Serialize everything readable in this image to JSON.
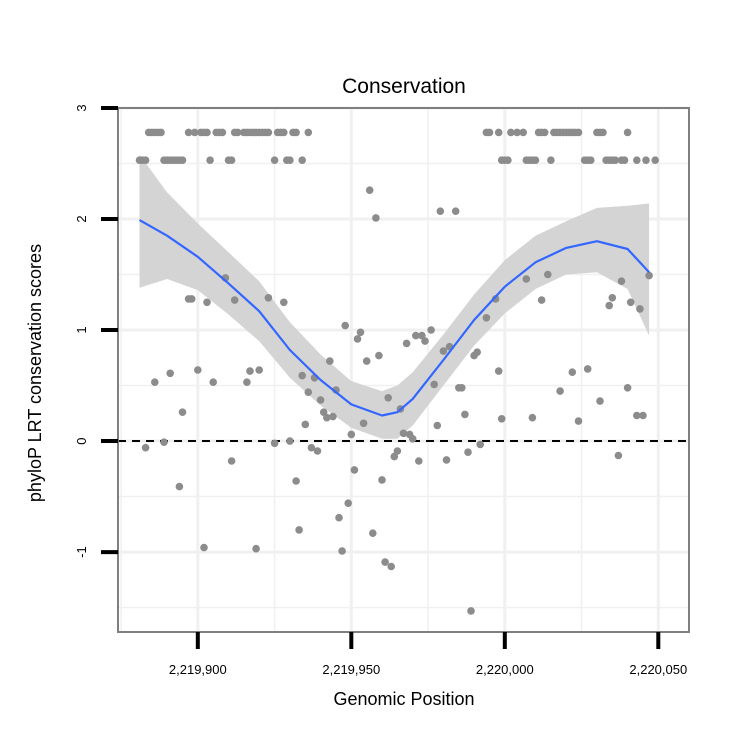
{
  "chart_data": {
    "type": "scatter",
    "title": "Conservation",
    "xlabel": "Genomic Position",
    "ylabel": "phyloP LRT conservation scores",
    "xlim": [
      2219874,
      2220060
    ],
    "ylim": [
      -1.72,
      3.0
    ],
    "x_ticks": [
      2219900,
      2219950,
      2220000,
      2220050
    ],
    "x_tick_labels": [
      "2,219,900",
      "2,219,950",
      "2,220,000",
      "2,220,050"
    ],
    "y_ticks": [
      -1,
      0,
      1,
      2,
      3
    ],
    "y_tick_labels": [
      "-1",
      "0",
      "1",
      "2",
      "3"
    ],
    "reference_line": {
      "y": 0,
      "style": "dashed"
    },
    "grid": true,
    "colors": {
      "points": "#8c8c8c",
      "smooth": "#3366ff",
      "ribbon": "#d4d4d4",
      "grid": "#f0f0f0",
      "panel_border": "#7f7f7f"
    },
    "points": [
      [
        2219881,
        2.53
      ],
      [
        2219882,
        2.53
      ],
      [
        2219883,
        2.53
      ],
      [
        2219884,
        2.78
      ],
      [
        2219885,
        2.78
      ],
      [
        2219886,
        2.78
      ],
      [
        2219887,
        2.78
      ],
      [
        2219888,
        2.78
      ],
      [
        2219889,
        2.53
      ],
      [
        2219890,
        2.53
      ],
      [
        2219891,
        2.53
      ],
      [
        2219892,
        2.53
      ],
      [
        2219893,
        2.53
      ],
      [
        2219894,
        2.53
      ],
      [
        2219895,
        2.53
      ],
      [
        2219897,
        2.78
      ],
      [
        2219899,
        2.78
      ],
      [
        2219901,
        2.78
      ],
      [
        2219902,
        2.78
      ],
      [
        2219903,
        2.78
      ],
      [
        2219904,
        2.53
      ],
      [
        2219906,
        2.78
      ],
      [
        2219907,
        2.78
      ],
      [
        2219908,
        2.78
      ],
      [
        2219910,
        2.53
      ],
      [
        2219911,
        2.53
      ],
      [
        2219912,
        2.78
      ],
      [
        2219913,
        2.78
      ],
      [
        2219915,
        2.78
      ],
      [
        2219916,
        2.78
      ],
      [
        2219917,
        2.78
      ],
      [
        2219918,
        2.78
      ],
      [
        2219919,
        2.78
      ],
      [
        2219920,
        2.78
      ],
      [
        2219921,
        2.78
      ],
      [
        2219922,
        2.78
      ],
      [
        2219923,
        2.78
      ],
      [
        2219925,
        2.53
      ],
      [
        2219926,
        2.78
      ],
      [
        2219927,
        2.78
      ],
      [
        2219928,
        2.78
      ],
      [
        2219929,
        2.53
      ],
      [
        2219930,
        2.53
      ],
      [
        2219931,
        2.78
      ],
      [
        2219932,
        2.78
      ],
      [
        2219934,
        2.53
      ],
      [
        2219936,
        2.78
      ],
      [
        2219994,
        2.78
      ],
      [
        2219995,
        2.78
      ],
      [
        2219998,
        2.78
      ],
      [
        2219999,
        2.53
      ],
      [
        2220000,
        2.53
      ],
      [
        2220001,
        2.53
      ],
      [
        2220002,
        2.78
      ],
      [
        2220004,
        2.78
      ],
      [
        2220006,
        2.78
      ],
      [
        2220007,
        2.53
      ],
      [
        2220008,
        2.53
      ],
      [
        2220009,
        2.53
      ],
      [
        2220010,
        2.53
      ],
      [
        2220011,
        2.78
      ],
      [
        2220012,
        2.78
      ],
      [
        2220013,
        2.78
      ],
      [
        2220015,
        2.53
      ],
      [
        2220016,
        2.78
      ],
      [
        2220017,
        2.78
      ],
      [
        2220018,
        2.78
      ],
      [
        2220019,
        2.78
      ],
      [
        2220020,
        2.78
      ],
      [
        2220021,
        2.78
      ],
      [
        2220022,
        2.78
      ],
      [
        2220023,
        2.78
      ],
      [
        2220024,
        2.78
      ],
      [
        2220026,
        2.53
      ],
      [
        2220027,
        2.53
      ],
      [
        2220028,
        2.53
      ],
      [
        2220030,
        2.78
      ],
      [
        2220031,
        2.78
      ],
      [
        2220032,
        2.78
      ],
      [
        2220033,
        2.53
      ],
      [
        2220034,
        2.53
      ],
      [
        2220035,
        2.53
      ],
      [
        2220036,
        2.53
      ],
      [
        2220038,
        2.53
      ],
      [
        2220039,
        2.53
      ],
      [
        2220040,
        2.78
      ],
      [
        2220043,
        2.53
      ],
      [
        2220046,
        2.53
      ],
      [
        2220049,
        2.53
      ],
      [
        2219883,
        -0.06
      ],
      [
        2219886,
        0.53
      ],
      [
        2219889,
        -0.01
      ],
      [
        2219891,
        0.61
      ],
      [
        2219894,
        -0.41
      ],
      [
        2219895,
        0.26
      ],
      [
        2219897,
        1.28
      ],
      [
        2219898,
        1.28
      ],
      [
        2219900,
        0.64
      ],
      [
        2219902,
        -0.96
      ],
      [
        2219903,
        1.25
      ],
      [
        2219905,
        0.53
      ],
      [
        2219909,
        1.47
      ],
      [
        2219911,
        -0.18
      ],
      [
        2219912,
        1.27
      ],
      [
        2219916,
        0.53
      ],
      [
        2219917,
        0.63
      ],
      [
        2219919,
        -0.97
      ],
      [
        2219920,
        0.64
      ],
      [
        2219923,
        1.29
      ],
      [
        2219925,
        -0.02
      ],
      [
        2219928,
        1.25
      ],
      [
        2219930,
        0.0
      ],
      [
        2219932,
        -0.36
      ],
      [
        2219933,
        -0.8
      ],
      [
        2219934,
        0.59
      ],
      [
        2219935,
        0.15
      ],
      [
        2219936,
        0.44
      ],
      [
        2219937,
        -0.06
      ],
      [
        2219938,
        0.57
      ],
      [
        2219939,
        -0.09
      ],
      [
        2219940,
        0.37
      ],
      [
        2219941,
        0.26
      ],
      [
        2219942,
        0.21
      ],
      [
        2219943,
        0.72
      ],
      [
        2219944,
        0.22
      ],
      [
        2219945,
        0.46
      ],
      [
        2219946,
        -0.69
      ],
      [
        2219947,
        -0.99
      ],
      [
        2219948,
        1.04
      ],
      [
        2219949,
        -0.56
      ],
      [
        2219950,
        0.06
      ],
      [
        2219951,
        -0.26
      ],
      [
        2219952,
        0.92
      ],
      [
        2219953,
        0.98
      ],
      [
        2219954,
        0.16
      ],
      [
        2219955,
        0.72
      ],
      [
        2219956,
        2.26
      ],
      [
        2219957,
        -0.83
      ],
      [
        2219958,
        2.01
      ],
      [
        2219959,
        0.77
      ],
      [
        2219960,
        -0.35
      ],
      [
        2219961,
        -1.09
      ],
      [
        2219962,
        0.39
      ],
      [
        2219963,
        -1.13
      ],
      [
        2219964,
        -0.14
      ],
      [
        2219965,
        -0.09
      ],
      [
        2219966,
        0.29
      ],
      [
        2219967,
        0.07
      ],
      [
        2219968,
        0.88
      ],
      [
        2219969,
        0.06
      ],
      [
        2219970,
        0.02
      ],
      [
        2219971,
        0.95
      ],
      [
        2219972,
        -0.18
      ],
      [
        2219973,
        0.95
      ],
      [
        2219974,
        0.9
      ],
      [
        2219976,
        1.0
      ],
      [
        2219977,
        0.51
      ],
      [
        2219978,
        0.14
      ],
      [
        2219979,
        2.07
      ],
      [
        2219980,
        0.81
      ],
      [
        2219981,
        -0.17
      ],
      [
        2219982,
        0.85
      ],
      [
        2219984,
        2.07
      ],
      [
        2219985,
        0.48
      ],
      [
        2219986,
        0.48
      ],
      [
        2219987,
        0.24
      ],
      [
        2219988,
        -0.1
      ],
      [
        2219989,
        -1.53
      ],
      [
        2219990,
        0.77
      ],
      [
        2219991,
        0.8
      ],
      [
        2219992,
        -0.03
      ],
      [
        2219994,
        1.11
      ],
      [
        2219997,
        1.28
      ],
      [
        2219998,
        0.63
      ],
      [
        2219999,
        0.2
      ],
      [
        2220007,
        1.46
      ],
      [
        2220009,
        0.21
      ],
      [
        2220012,
        1.27
      ],
      [
        2220014,
        1.5
      ],
      [
        2220018,
        0.45
      ],
      [
        2220022,
        0.62
      ],
      [
        2220024,
        0.18
      ],
      [
        2220027,
        0.65
      ],
      [
        2220031,
        0.36
      ],
      [
        2220034,
        1.22
      ],
      [
        2220035,
        1.29
      ],
      [
        2220037,
        -0.13
      ],
      [
        2220038,
        1.44
      ],
      [
        2220040,
        0.48
      ],
      [
        2220041,
        1.25
      ],
      [
        2220043,
        0.23
      ],
      [
        2220044,
        1.19
      ],
      [
        2220045,
        0.23
      ],
      [
        2220047,
        1.49
      ]
    ],
    "smooth_line": {
      "x": [
        2219881,
        2219890,
        2219900,
        2219910,
        2219920,
        2219930,
        2219940,
        2219950,
        2219960,
        2219965,
        2219970,
        2219980,
        2219990,
        2220000,
        2220010,
        2220020,
        2220030,
        2220040,
        2220047
      ],
      "y": [
        1.99,
        1.85,
        1.66,
        1.42,
        1.17,
        0.82,
        0.55,
        0.33,
        0.23,
        0.26,
        0.38,
        0.73,
        1.09,
        1.39,
        1.61,
        1.74,
        1.8,
        1.73,
        1.52
      ]
    },
    "ribbon": {
      "x": [
        2219881,
        2219890,
        2219900,
        2219910,
        2219920,
        2219930,
        2219940,
        2219950,
        2219960,
        2219965,
        2219970,
        2219980,
        2219990,
        2220000,
        2220010,
        2220020,
        2220030,
        2220040,
        2220047
      ],
      "lower": [
        1.38,
        1.46,
        1.36,
        1.14,
        0.9,
        0.57,
        0.32,
        0.12,
        0.02,
        0.02,
        0.14,
        0.5,
        0.86,
        1.15,
        1.37,
        1.5,
        1.52,
        1.37,
        0.95
      ],
      "upper": [
        2.58,
        2.24,
        1.96,
        1.7,
        1.44,
        1.07,
        0.78,
        0.54,
        0.45,
        0.5,
        0.62,
        0.96,
        1.32,
        1.63,
        1.85,
        1.98,
        2.1,
        2.12,
        2.14
      ]
    }
  }
}
